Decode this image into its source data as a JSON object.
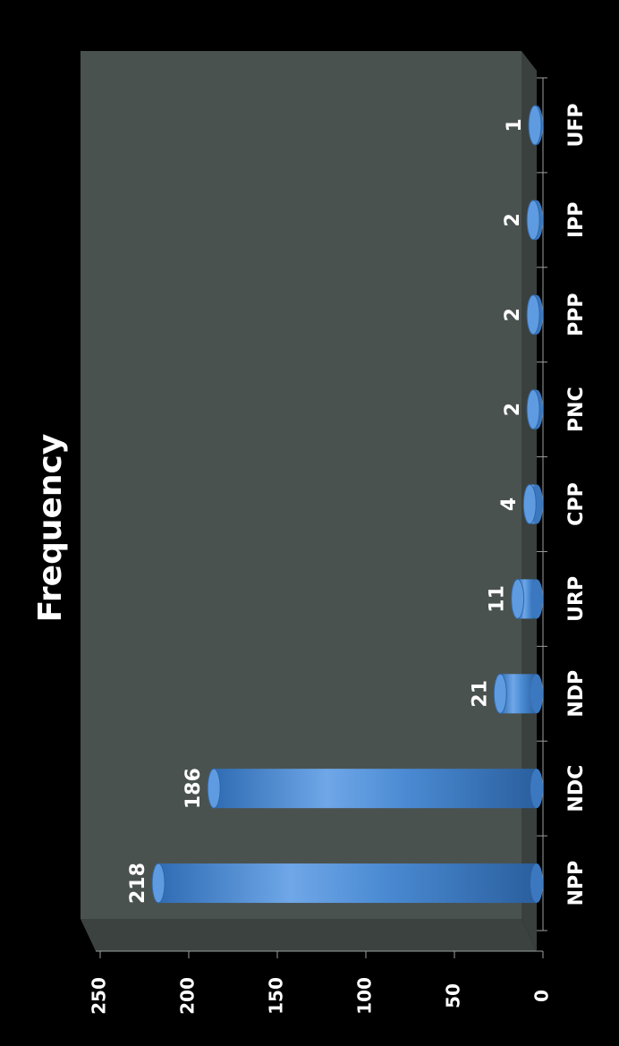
{
  "chart_data": {
    "type": "bar",
    "title": "Frequency",
    "categories": [
      "NPP",
      "NDC",
      "NDP",
      "URP",
      "CPP",
      "PNC",
      "PPP",
      "IPP",
      "UFP"
    ],
    "values": [
      218,
      186,
      21,
      11,
      4,
      2,
      2,
      2,
      1
    ],
    "data_labels": [
      "218",
      "186",
      "21",
      "11",
      "4",
      "2",
      "2",
      "2",
      "1"
    ],
    "xlabel": "",
    "ylabel": "",
    "ylim": [
      0,
      250
    ],
    "yticks": [
      0,
      50,
      100,
      150,
      200,
      250
    ],
    "ytick_labels": [
      "0",
      "50",
      "100",
      "150",
      "200",
      "250"
    ],
    "grid": false,
    "legend": "none",
    "orientation": "rotated-90-clockwise",
    "style": "3d-cylinder"
  },
  "colors": {
    "background": "#000000",
    "plot_wall": "#4a5250",
    "plot_floor": "#3a403e",
    "bar": "#4a8ad2",
    "text": "#ffffff"
  }
}
